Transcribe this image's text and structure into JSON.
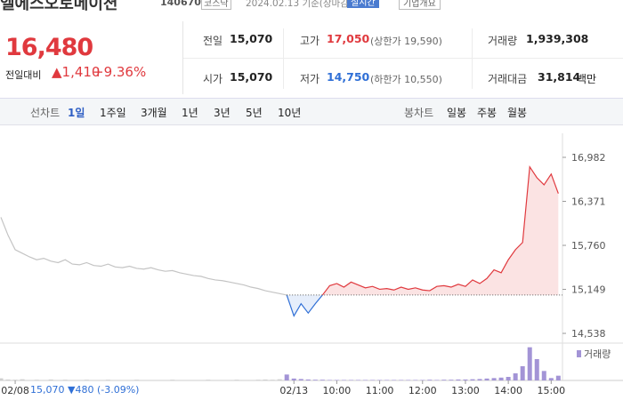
{
  "header": {
    "name": "엘에스오토메이션",
    "code": "140670",
    "market": "코스닥",
    "date": "2024.02.13 기준(장마감)",
    "realtime": "실시간",
    "company": "기업개요"
  },
  "quote": {
    "price": "16,480",
    "change_label": "전일대비",
    "change": "▲1,410",
    "rate": "+9.36%"
  },
  "table": {
    "rows": [
      [
        {
          "label": "전일",
          "value": "15,070"
        },
        {
          "label": "고가",
          "value": "17,050",
          "note": "(상한가 19,590)"
        },
        {
          "label": "거래량",
          "value": "1,939,308"
        }
      ],
      [
        {
          "label": "시가",
          "value": "15,070"
        },
        {
          "label": "저가",
          "value": "14,750",
          "note": "(하한가 10,550)"
        },
        {
          "label": "거래대금",
          "value": "31,814",
          "note": "백만"
        }
      ]
    ]
  },
  "tabs": {
    "line_label": "선차트",
    "line": [
      "1일",
      "1주일",
      "3개월",
      "1년",
      "3년",
      "5년",
      "10년"
    ],
    "candle_label": "봉차트",
    "candle": [
      "일봉",
      "주봉",
      "월봉"
    ]
  },
  "footer": {
    "price": "15,070",
    "change": "▼480",
    "rate": "(-3.09%)"
  },
  "chart_data": {
    "type": "line",
    "categories": [
      null,
      null,
      "02/08",
      null,
      null,
      null,
      null,
      null,
      null,
      null,
      null,
      null,
      null,
      null,
      null,
      null,
      null,
      null,
      null,
      null,
      null,
      null,
      null,
      null,
      null,
      null,
      null,
      null,
      null,
      null,
      null,
      null,
      null,
      null,
      null,
      null,
      null,
      null,
      null,
      null,
      null,
      "02/13",
      null,
      null,
      null,
      null,
      null,
      "10:00",
      null,
      null,
      null,
      null,
      null,
      "11:00",
      null,
      null,
      null,
      null,
      null,
      "12:00",
      null,
      null,
      null,
      null,
      null,
      "13:00",
      null,
      null,
      null,
      null,
      null,
      "14:00",
      null,
      null,
      null,
      null,
      null,
      "15:00",
      null
    ],
    "series": [
      {
        "color": "#c4c4c4",
        "values": [
          16150,
          15900,
          15700,
          15650,
          15600,
          15560,
          15580,
          15540,
          15520,
          15560,
          15500,
          15490,
          15520,
          15480,
          15470,
          15500,
          15460,
          15450,
          15470,
          15440,
          15430,
          15450,
          15420,
          15400,
          15410,
          15380,
          15360,
          15340,
          15330,
          15300,
          15280,
          15270,
          15250,
          15230,
          15210,
          15180,
          15160,
          15130,
          15110,
          15090,
          15070,
          null,
          null,
          null,
          null,
          null,
          null,
          null,
          null,
          null,
          null,
          null,
          null,
          null,
          null,
          null,
          null,
          null,
          null,
          null,
          null,
          null,
          null,
          null,
          null,
          null,
          null,
          null,
          null,
          null,
          null,
          null,
          null,
          null,
          null,
          null,
          null,
          null,
          null
        ]
      },
      {
        "color": "#2f6fd6",
        "area_color": "#e6eefb",
        "values": [
          null,
          null,
          null,
          null,
          null,
          null,
          null,
          null,
          null,
          null,
          null,
          null,
          null,
          null,
          null,
          null,
          null,
          null,
          null,
          null,
          null,
          null,
          null,
          null,
          null,
          null,
          null,
          null,
          null,
          null,
          null,
          null,
          null,
          null,
          null,
          null,
          null,
          null,
          null,
          null,
          15070,
          14780,
          14950,
          14820,
          14950,
          15070,
          null,
          null,
          null,
          null,
          null,
          null,
          null,
          null,
          null,
          null,
          null,
          null,
          null,
          null,
          null,
          null,
          null,
          null,
          null,
          null,
          null,
          null,
          null,
          null,
          null,
          null,
          null,
          null,
          null,
          null,
          null,
          null,
          null
        ]
      },
      {
        "color": "#e0393e",
        "area_color": "#fbe3e3",
        "values": [
          null,
          null,
          null,
          null,
          null,
          null,
          null,
          null,
          null,
          null,
          null,
          null,
          null,
          null,
          null,
          null,
          null,
          null,
          null,
          null,
          null,
          null,
          null,
          null,
          null,
          null,
          null,
          null,
          null,
          null,
          null,
          null,
          null,
          null,
          null,
          null,
          null,
          null,
          null,
          null,
          null,
          null,
          null,
          null,
          null,
          15070,
          15200,
          15230,
          15180,
          15250,
          15210,
          15170,
          15190,
          15150,
          15160,
          15140,
          15180,
          15150,
          15170,
          15140,
          15130,
          15190,
          15200,
          15180,
          15220,
          15190,
          15280,
          15230,
          15300,
          15420,
          15380,
          15560,
          15700,
          15800,
          16850,
          16700,
          16600,
          16750,
          16480
        ]
      }
    ],
    "baseline": 15070,
    "ylim": [
      14415,
      17192
    ],
    "yticks": [
      {
        "value": 16982,
        "label": "16,982"
      },
      {
        "value": 16371,
        "label": "16,371"
      },
      {
        "value": 15760,
        "label": "15,760"
      },
      {
        "value": 15149,
        "label": "15,149"
      },
      {
        "value": 14538,
        "label": "14,538"
      }
    ],
    "volume_series": [
      {
        "color": "#cfcfcf",
        "values": [
          9000,
          4000,
          3000,
          5000,
          2000,
          3000,
          2000,
          4000,
          2000,
          3000,
          2000,
          2000,
          3000,
          2000,
          2000,
          3000,
          2000,
          2000,
          2000,
          3000,
          2000,
          2000,
          2000,
          2000,
          3000,
          2000,
          2000,
          2000,
          2000,
          3000,
          2000,
          2000,
          2000,
          3000,
          2000,
          2000,
          3000,
          4000,
          3000,
          5000,
          null,
          null,
          null,
          null,
          null,
          null,
          null,
          null,
          null,
          null,
          null,
          null,
          null,
          null,
          null,
          null,
          null,
          null,
          null,
          null,
          null,
          null,
          null,
          null,
          null,
          null,
          null,
          null,
          null,
          null,
          null,
          null,
          null,
          null,
          null,
          null,
          null,
          null,
          null
        ]
      },
      {
        "name": "거래량",
        "color": "#a394d6",
        "values": [
          null,
          null,
          null,
          null,
          null,
          null,
          null,
          null,
          null,
          null,
          null,
          null,
          null,
          null,
          null,
          null,
          null,
          null,
          null,
          null,
          null,
          null,
          null,
          null,
          null,
          null,
          null,
          null,
          null,
          null,
          null,
          null,
          null,
          null,
          null,
          null,
          null,
          null,
          null,
          null,
          25000,
          8000,
          6000,
          4000,
          3000,
          3000,
          2000,
          2000,
          2000,
          2000,
          2000,
          2000,
          2000,
          2000,
          2000,
          2000,
          2000,
          2000,
          2000,
          2000,
          3000,
          2000,
          3000,
          3000,
          4000,
          4000,
          5000,
          6000,
          8000,
          10000,
          12000,
          15000,
          30000,
          60000,
          140000,
          90000,
          40000,
          10000,
          20000
        ]
      }
    ],
    "volume_ylim": [
      0,
      150000
    ]
  }
}
